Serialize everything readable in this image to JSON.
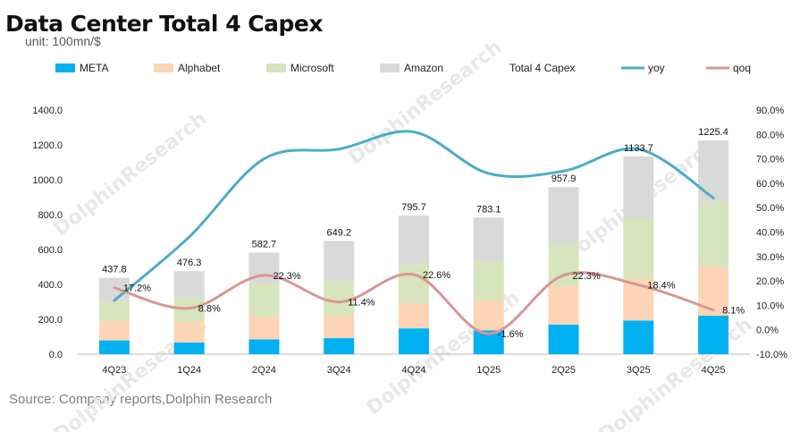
{
  "title": "Data Center Total 4 Capex",
  "unit": "unit: 100mn/$",
  "source": "Source: Company reports,Dolphin Research",
  "watermark": "DolphinResearch",
  "colors": {
    "META": "#00b0f0",
    "Alphabet": "#fbd5b5",
    "Microsoft": "#d7e4bd",
    "Amazon": "#d9d9d9",
    "yoy": "#4bacc6",
    "qoq": "#d99694"
  },
  "chart_data": {
    "type": "bar",
    "stacked": true,
    "categories": [
      "4Q23",
      "1Q24",
      "2Q24",
      "3Q24",
      "4Q24",
      "1Q25",
      "2Q25",
      "3Q25",
      "4Q25"
    ],
    "ylim": [
      0,
      1400
    ],
    "y_ticks": [
      "1400.0",
      "1200.0",
      "1000.0",
      "800.0",
      "600.0",
      "400.0",
      "200.0",
      "0.0"
    ],
    "y2lim": [
      -0.1,
      0.9
    ],
    "y2_ticks": [
      "90.0%",
      "80.0%",
      "70.0%",
      "60.0%",
      "50.0%",
      "40.0%",
      "30.0%",
      "20.0%",
      "10.0%",
      "0.0%",
      "-10.0%"
    ],
    "legend_position": "top",
    "series": [
      {
        "name": "META",
        "values": [
          79,
          67,
          85,
          92,
          148,
          137,
          170,
          193,
          221
        ]
      },
      {
        "name": "Alphabet",
        "values": [
          110,
          120,
          131,
          131,
          143,
          172,
          224,
          240,
          280
        ]
      },
      {
        "name": "Microsoft",
        "values": [
          115,
          140,
          190,
          200,
          226,
          225,
          242,
          349,
          375
        ]
      },
      {
        "name": "Amazon",
        "values": [
          133.8,
          149.3,
          176.7,
          226.2,
          278.7,
          249.1,
          321.9,
          351.7,
          349.4
        ]
      }
    ],
    "totals": {
      "name": "Total 4 Capex",
      "values": [
        437.8,
        476.3,
        582.7,
        649.2,
        795.7,
        783.1,
        957.9,
        1133.7,
        1225.4
      ],
      "labels": [
        "437.8",
        "476.3",
        "582.7",
        "649.2",
        "795.7",
        "783.1",
        "957.9",
        "1133.7",
        "1225.4"
      ]
    },
    "lines": [
      {
        "name": "yoy",
        "axis": "right",
        "values": [
          0.12,
          0.38,
          0.7,
          0.74,
          0.81,
          0.64,
          0.65,
          0.74,
          0.54
        ],
        "labels": []
      },
      {
        "name": "qoq",
        "axis": "right",
        "values": [
          0.172,
          0.088,
          0.223,
          0.114,
          0.226,
          -0.016,
          0.223,
          0.184,
          0.081
        ],
        "labels": [
          "17.2%",
          "8.8%",
          "22.3%",
          "11.4%",
          "22.6%",
          "-1.6%",
          "22.3%",
          "18.4%",
          "8.1%"
        ]
      }
    ]
  }
}
